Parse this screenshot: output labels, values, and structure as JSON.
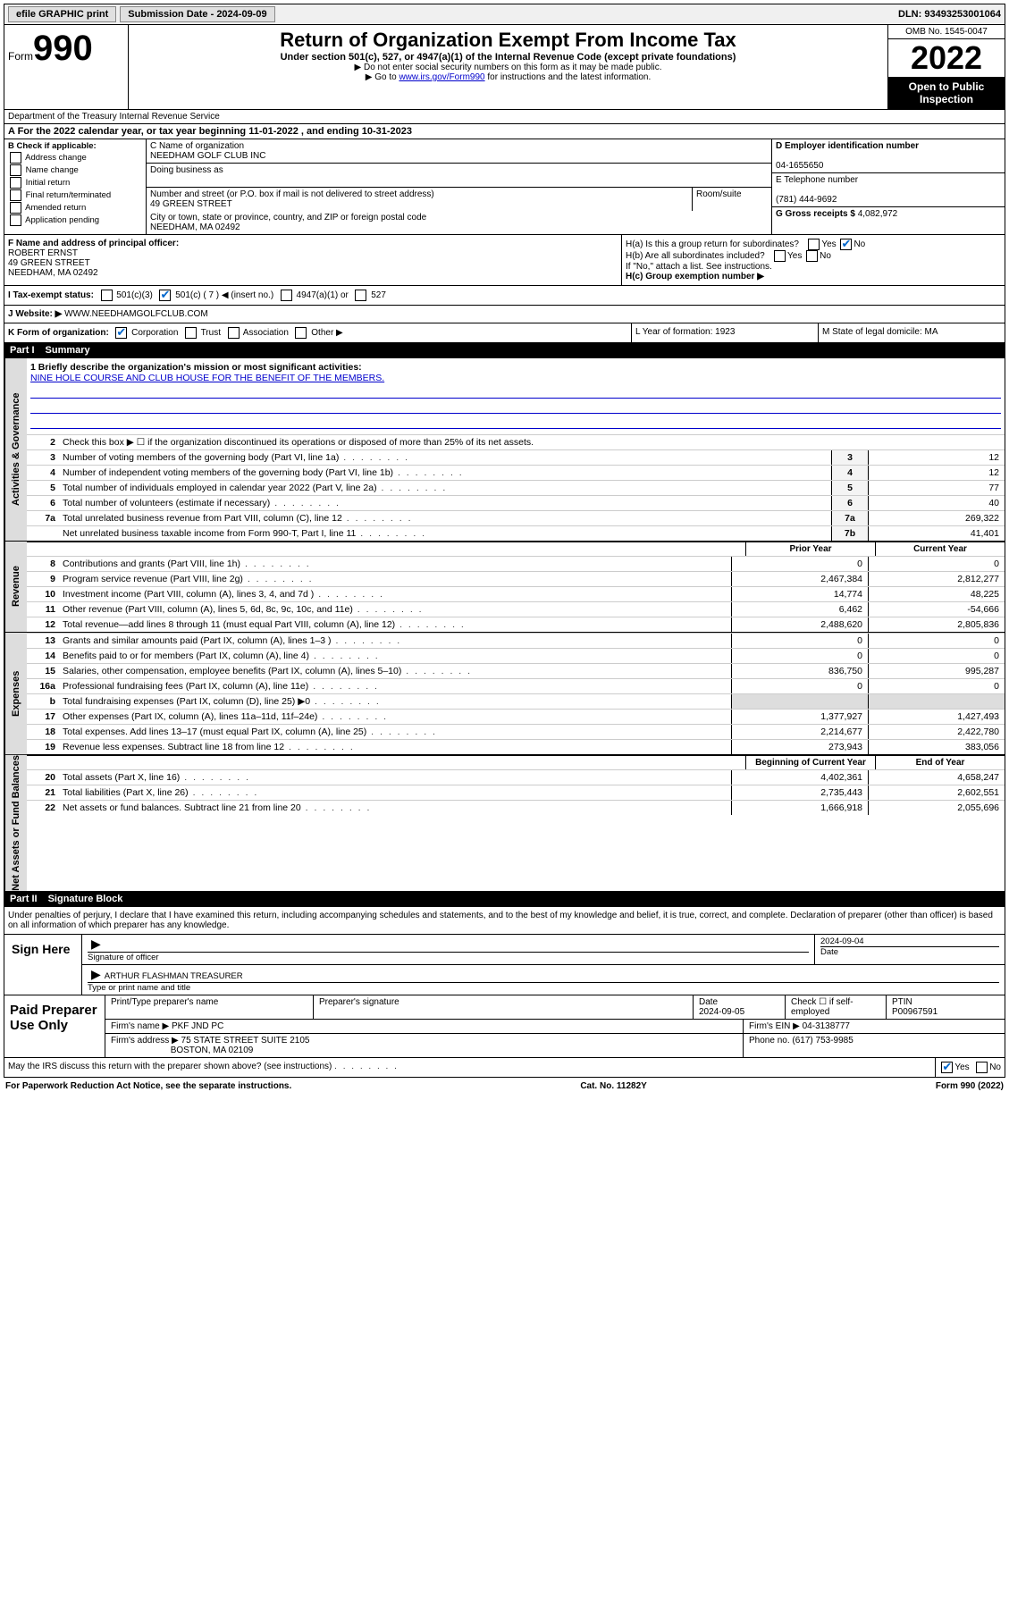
{
  "topbar": {
    "efile": "efile GRAPHIC print",
    "sub_label": "Submission Date - 2024-09-09",
    "dln": "DLN: 93493253001064"
  },
  "header": {
    "form_word": "Form",
    "form_num": "990",
    "title": "Return of Organization Exempt From Income Tax",
    "sub": "Under section 501(c), 527, or 4947(a)(1) of the Internal Revenue Code (except private foundations)",
    "note1": "▶ Do not enter social security numbers on this form as it may be made public.",
    "note2_pre": "▶ Go to ",
    "note2_link": "www.irs.gov/Form990",
    "note2_post": " for instructions and the latest information.",
    "omb": "OMB No. 1545-0047",
    "year": "2022",
    "open": "Open to Public Inspection",
    "dept": "Department of the Treasury Internal Revenue Service"
  },
  "rowA": "A For the 2022 calendar year, or tax year beginning 11-01-2022    , and ending 10-31-2023",
  "colB": {
    "label": "B Check if applicable:",
    "opts": [
      "Address change",
      "Name change",
      "Initial return",
      "Final return/terminated",
      "Amended return",
      "Application pending"
    ]
  },
  "colC": {
    "name_label": "C Name of organization",
    "name": "NEEDHAM GOLF CLUB INC",
    "dba_label": "Doing business as",
    "addr_label": "Number and street (or P.O. box if mail is not delivered to street address)",
    "room_label": "Room/suite",
    "addr": "49 GREEN STREET",
    "city_label": "City or town, state or province, country, and ZIP or foreign postal code",
    "city": "NEEDHAM, MA  02492"
  },
  "colDE": {
    "d_label": "D Employer identification number",
    "ein": "04-1655650",
    "e_label": "E Telephone number",
    "phone": "(781) 444-9692",
    "g_label": "G Gross receipts $",
    "gross": "4,082,972"
  },
  "colF": {
    "label": "F  Name and address of principal officer:",
    "name": "ROBERT ERNST",
    "addr1": "49 GREEN STREET",
    "addr2": "NEEDHAM, MA  02492"
  },
  "colH": {
    "ha": "H(a)  Is this a group return for subordinates?",
    "hb": "H(b)  Are all subordinates included?",
    "hb_note": "If \"No,\" attach a list. See instructions.",
    "hc": "H(c)  Group exemption number ▶",
    "yes": "Yes",
    "no": "No"
  },
  "rowI": {
    "label": "I   Tax-exempt status:",
    "opt1": "501(c)(3)",
    "opt2": "501(c) ( 7 ) ◀ (insert no.)",
    "opt3": "4947(a)(1) or",
    "opt4": "527"
  },
  "rowJ": {
    "label": "J   Website: ▶",
    "val": "WWW.NEEDHAMGOLFCLUB.COM"
  },
  "rowK": {
    "label": "K Form of organization:",
    "opts": [
      "Corporation",
      "Trust",
      "Association",
      "Other ▶"
    ],
    "l": "L Year of formation: 1923",
    "m": "M State of legal domicile: MA"
  },
  "part1": {
    "label": "Part I",
    "title": "Summary"
  },
  "mission": {
    "label": "1   Briefly describe the organization's mission or most significant activities:",
    "text": "NINE HOLE COURSE AND CLUB HOUSE FOR THE BENEFIT OF THE MEMBERS."
  },
  "line2": "Check this box ▶ ☐  if the organization discontinued its operations or disposed of more than 25% of its net assets.",
  "side_labels": {
    "gov": "Activities & Governance",
    "rev": "Revenue",
    "exp": "Expenses",
    "net": "Net Assets or Fund Balances"
  },
  "gov_lines": [
    {
      "n": "3",
      "d": "Number of voting members of the governing body (Part VI, line 1a)",
      "box": "3",
      "v": "12"
    },
    {
      "n": "4",
      "d": "Number of independent voting members of the governing body (Part VI, line 1b)",
      "box": "4",
      "v": "12"
    },
    {
      "n": "5",
      "d": "Total number of individuals employed in calendar year 2022 (Part V, line 2a)",
      "box": "5",
      "v": "77"
    },
    {
      "n": "6",
      "d": "Total number of volunteers (estimate if necessary)",
      "box": "6",
      "v": "40"
    },
    {
      "n": "7a",
      "d": "Total unrelated business revenue from Part VIII, column (C), line 12",
      "box": "7a",
      "v": "269,322"
    },
    {
      "n": "",
      "d": "Net unrelated business taxable income from Form 990-T, Part I, line 11",
      "box": "7b",
      "v": "41,401"
    }
  ],
  "col_headers": {
    "prior": "Prior Year",
    "current": "Current Year"
  },
  "rev_lines": [
    {
      "n": "8",
      "d": "Contributions and grants (Part VIII, line 1h)",
      "p": "0",
      "c": "0"
    },
    {
      "n": "9",
      "d": "Program service revenue (Part VIII, line 2g)",
      "p": "2,467,384",
      "c": "2,812,277"
    },
    {
      "n": "10",
      "d": "Investment income (Part VIII, column (A), lines 3, 4, and 7d )",
      "p": "14,774",
      "c": "48,225"
    },
    {
      "n": "11",
      "d": "Other revenue (Part VIII, column (A), lines 5, 6d, 8c, 9c, 10c, and 11e)",
      "p": "6,462",
      "c": "-54,666"
    },
    {
      "n": "12",
      "d": "Total revenue—add lines 8 through 11 (must equal Part VIII, column (A), line 12)",
      "p": "2,488,620",
      "c": "2,805,836"
    }
  ],
  "exp_lines": [
    {
      "n": "13",
      "d": "Grants and similar amounts paid (Part IX, column (A), lines 1–3 )",
      "p": "0",
      "c": "0"
    },
    {
      "n": "14",
      "d": "Benefits paid to or for members (Part IX, column (A), line 4)",
      "p": "0",
      "c": "0"
    },
    {
      "n": "15",
      "d": "Salaries, other compensation, employee benefits (Part IX, column (A), lines 5–10)",
      "p": "836,750",
      "c": "995,287"
    },
    {
      "n": "16a",
      "d": "Professional fundraising fees (Part IX, column (A), line 11e)",
      "p": "0",
      "c": "0"
    },
    {
      "n": "b",
      "d": "Total fundraising expenses (Part IX, column (D), line 25) ▶0",
      "p": "",
      "c": ""
    },
    {
      "n": "17",
      "d": "Other expenses (Part IX, column (A), lines 11a–11d, 11f–24e)",
      "p": "1,377,927",
      "c": "1,427,493"
    },
    {
      "n": "18",
      "d": "Total expenses. Add lines 13–17 (must equal Part IX, column (A), line 25)",
      "p": "2,214,677",
      "c": "2,422,780"
    },
    {
      "n": "19",
      "d": "Revenue less expenses. Subtract line 18 from line 12",
      "p": "273,943",
      "c": "383,056"
    }
  ],
  "net_headers": {
    "beg": "Beginning of Current Year",
    "end": "End of Year"
  },
  "net_lines": [
    {
      "n": "20",
      "d": "Total assets (Part X, line 16)",
      "p": "4,402,361",
      "c": "4,658,247"
    },
    {
      "n": "21",
      "d": "Total liabilities (Part X, line 26)",
      "p": "2,735,443",
      "c": "2,602,551"
    },
    {
      "n": "22",
      "d": "Net assets or fund balances. Subtract line 21 from line 20",
      "p": "1,666,918",
      "c": "2,055,696"
    }
  ],
  "part2": {
    "label": "Part II",
    "title": "Signature Block"
  },
  "sig_text": "Under penalties of perjury, I declare that I have examined this return, including accompanying schedules and statements, and to the best of my knowledge and belief, it is true, correct, and complete. Declaration of preparer (other than officer) is based on all information of which preparer has any knowledge.",
  "sign": {
    "here": "Sign Here",
    "sig_label": "Signature of officer",
    "date": "2024-09-04",
    "date_label": "Date",
    "name": "ARTHUR FLASHMAN TREASURER",
    "name_label": "Type or print name and title"
  },
  "prep": {
    "label": "Paid Preparer Use Only",
    "h1": "Print/Type preparer's name",
    "h2": "Preparer's signature",
    "h3": "Date",
    "date": "2024-09-05",
    "h4": "Check ☐ if self-employed",
    "h5": "PTIN",
    "ptin": "P00967591",
    "firm_label": "Firm's name    ▶",
    "firm": "PKF JND PC",
    "ein_label": "Firm's EIN ▶",
    "ein": "04-3138777",
    "addr_label": "Firm's address ▶",
    "addr1": "75 STATE STREET SUITE 2105",
    "addr2": "BOSTON, MA  02109",
    "phone_label": "Phone no.",
    "phone": "(617) 753-9985"
  },
  "discuss": "May the IRS discuss this return with the preparer shown above? (see instructions)",
  "footer": {
    "left": "For Paperwork Reduction Act Notice, see the separate instructions.",
    "mid": "Cat. No. 11282Y",
    "right": "Form 990 (2022)"
  }
}
